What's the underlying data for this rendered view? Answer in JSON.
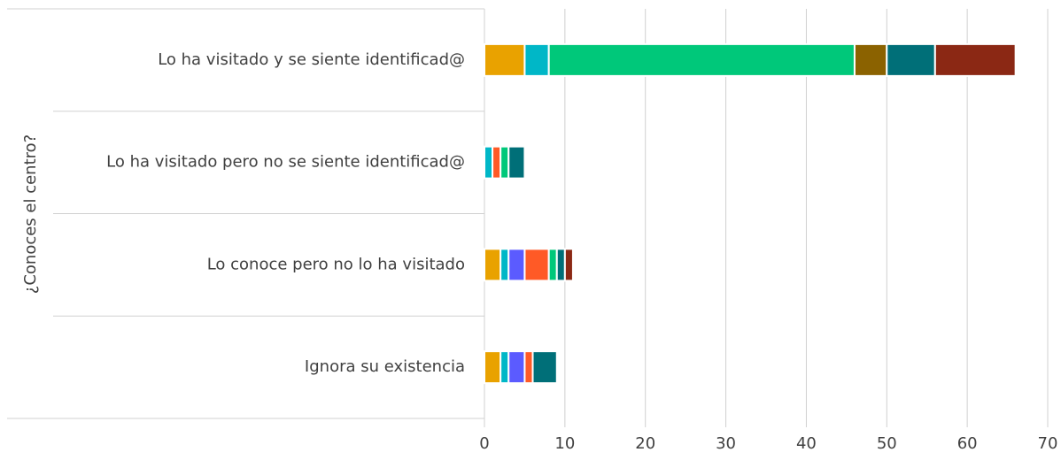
{
  "chart_data": {
    "type": "stacked-horizontal-bar",
    "y_axis_label": "¿Conoces el centro?",
    "categories": [
      "Lo ha visitado y se siente identificad@",
      "Lo ha visitado pero no se siente identificad@",
      "Lo conoce pero no lo ha visitado",
      "Ignora su existencia"
    ],
    "series": [
      {
        "color": "#e9a200",
        "values": [
          5,
          0,
          2,
          2
        ]
      },
      {
        "color": "#00b7c7",
        "values": [
          3,
          1,
          1,
          1
        ]
      },
      {
        "color": "#5b5bff",
        "values": [
          0,
          0,
          2,
          2
        ]
      },
      {
        "color": "#ff5a26",
        "values": [
          0,
          1,
          3,
          1
        ]
      },
      {
        "color": "#00c87a",
        "values": [
          38,
          1,
          1,
          0
        ]
      },
      {
        "color": "#8b6200",
        "values": [
          4,
          0,
          0,
          0
        ]
      },
      {
        "color": "#006f78",
        "values": [
          6,
          2,
          1,
          3
        ]
      },
      {
        "color": "#8b2814",
        "values": [
          10,
          0,
          1,
          0
        ]
      }
    ],
    "xlim": [
      0,
      70
    ],
    "xticks": [
      0,
      10,
      20,
      30,
      40,
      50,
      60,
      70
    ],
    "grid": true
  }
}
